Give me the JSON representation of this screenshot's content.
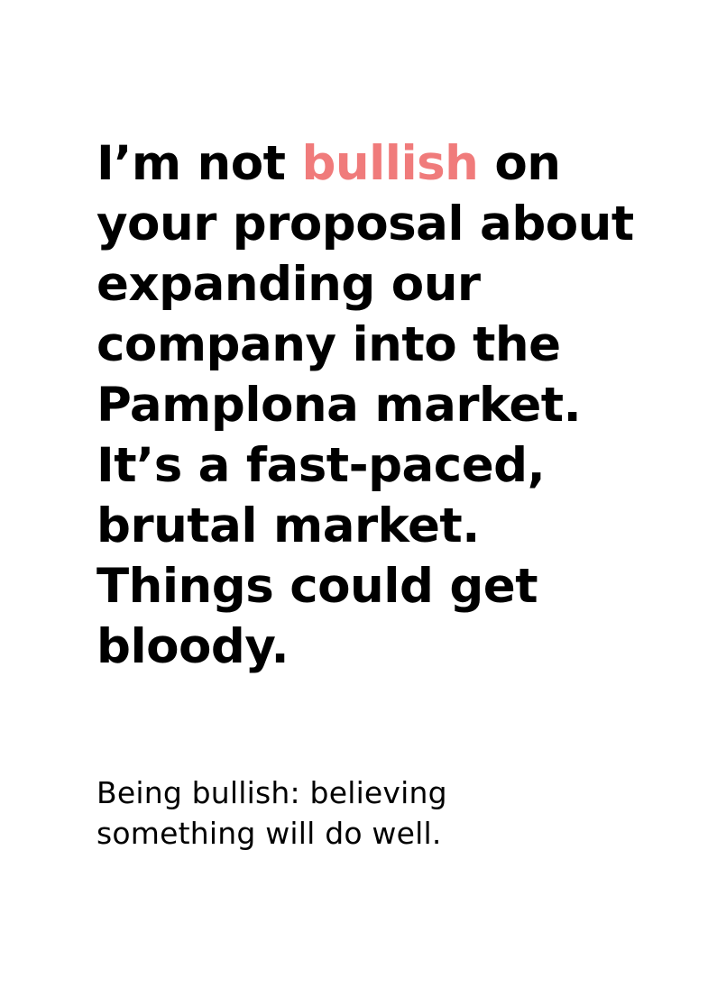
{
  "quote": {
    "line1_before": "I’m not ",
    "highlight_word": "bullish",
    "line1_after": " on",
    "lines": [
      "your proposal about",
      "expanding our",
      "company into the",
      "Pamplona market.",
      "It’s a fast-paced,",
      "brutal market.",
      "Things could get",
      "bloody."
    ]
  },
  "definition": {
    "lines": [
      "Being bullish: believing",
      "something will do well."
    ]
  },
  "colors": {
    "highlight": "#f07b7b",
    "text": "#000000",
    "background": "#ffffff"
  }
}
